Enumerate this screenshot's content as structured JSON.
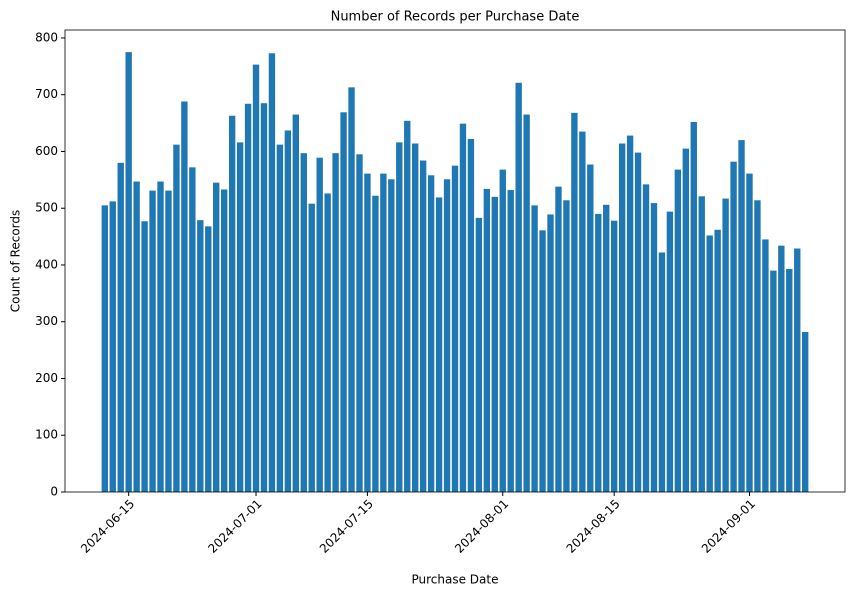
{
  "chart_data": {
    "type": "bar",
    "title": "Number of Records per Purchase Date",
    "xlabel": "Purchase Date",
    "ylabel": "Count of Records",
    "color": "#1f77b4",
    "x": [
      "2024-06-12",
      "2024-06-13",
      "2024-06-14",
      "2024-06-15",
      "2024-06-16",
      "2024-06-17",
      "2024-06-18",
      "2024-06-19",
      "2024-06-20",
      "2024-06-21",
      "2024-06-22",
      "2024-06-23",
      "2024-06-24",
      "2024-06-25",
      "2024-06-26",
      "2024-06-27",
      "2024-06-28",
      "2024-06-29",
      "2024-06-30",
      "2024-07-01",
      "2024-07-02",
      "2024-07-03",
      "2024-07-04",
      "2024-07-05",
      "2024-07-06",
      "2024-07-07",
      "2024-07-08",
      "2024-07-09",
      "2024-07-10",
      "2024-07-11",
      "2024-07-12",
      "2024-07-13",
      "2024-07-14",
      "2024-07-15",
      "2024-07-16",
      "2024-07-17",
      "2024-07-18",
      "2024-07-19",
      "2024-07-20",
      "2024-07-21",
      "2024-07-22",
      "2024-07-23",
      "2024-07-24",
      "2024-07-25",
      "2024-07-26",
      "2024-07-27",
      "2024-07-28",
      "2024-07-29",
      "2024-07-30",
      "2024-07-31",
      "2024-08-01",
      "2024-08-02",
      "2024-08-03",
      "2024-08-04",
      "2024-08-05",
      "2024-08-06",
      "2024-08-07",
      "2024-08-08",
      "2024-08-09",
      "2024-08-10",
      "2024-08-11",
      "2024-08-12",
      "2024-08-13",
      "2024-08-14",
      "2024-08-15",
      "2024-08-16",
      "2024-08-17",
      "2024-08-18",
      "2024-08-19",
      "2024-08-20",
      "2024-08-21",
      "2024-08-22",
      "2024-08-23",
      "2024-08-24",
      "2024-08-25",
      "2024-08-26",
      "2024-08-27",
      "2024-08-28",
      "2024-08-29",
      "2024-08-30",
      "2024-08-31",
      "2024-09-01",
      "2024-09-02",
      "2024-09-03",
      "2024-09-04",
      "2024-09-05",
      "2024-09-06",
      "2024-09-07",
      "2024-09-08"
    ],
    "values": [
      505,
      512,
      580,
      775,
      547,
      477,
      531,
      547,
      531,
      612,
      688,
      572,
      479,
      468,
      545,
      533,
      663,
      616,
      684,
      753,
      685,
      773,
      612,
      637,
      665,
      597,
      508,
      589,
      526,
      597,
      669,
      713,
      595,
      561,
      522,
      561,
      551,
      616,
      654,
      614,
      584,
      558,
      519,
      551,
      575,
      649,
      622,
      483,
      534,
      520,
      568,
      532,
      721,
      665,
      505,
      461,
      489,
      538,
      514,
      668,
      635,
      577,
      490,
      506,
      478,
      614,
      628,
      598,
      542,
      509,
      422,
      494,
      568,
      605,
      652,
      521,
      452,
      462,
      517,
      582,
      620,
      561,
      514,
      445,
      390,
      434,
      393,
      429,
      282
    ],
    "xlim": [
      "2024-06-07",
      "2024-09-13"
    ],
    "xticks": [
      "2024-06-15",
      "2024-07-01",
      "2024-07-15",
      "2024-08-01",
      "2024-08-15",
      "2024-09-01"
    ],
    "ylim": [
      0,
      814
    ],
    "yticks": [
      0,
      100,
      200,
      300,
      400,
      500,
      600,
      700,
      800
    ],
    "grid": false
  }
}
